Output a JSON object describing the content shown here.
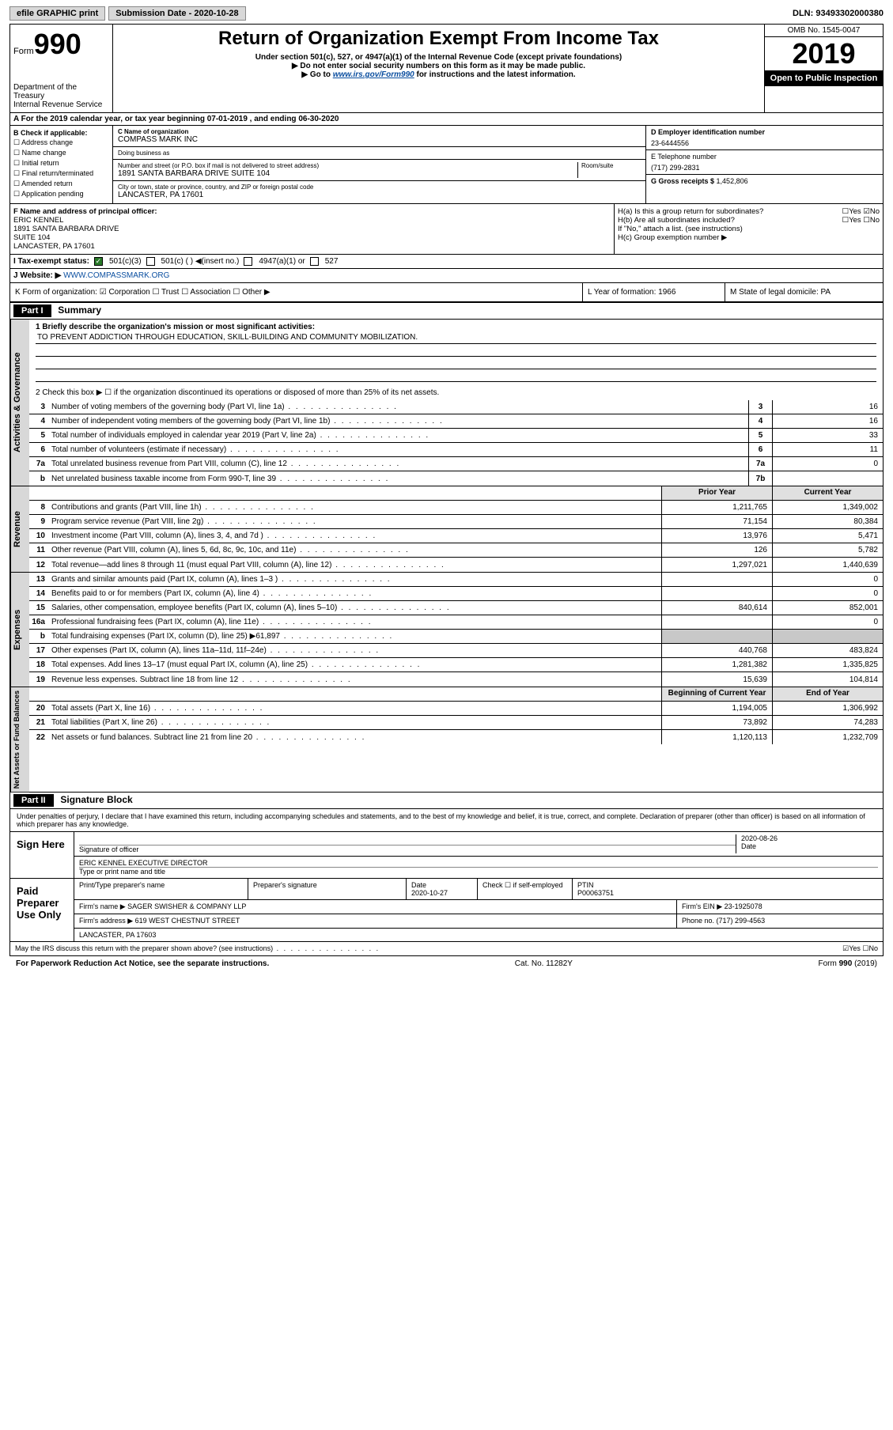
{
  "topbar": {
    "efile": "efile GRAPHIC print",
    "subdate_label": "Submission Date - ",
    "subdate": "2020-10-28",
    "dln_label": "DLN: ",
    "dln": "93493302000380"
  },
  "header": {
    "form_word": "Form",
    "form_num": "990",
    "dept": "Department of the Treasury\nInternal Revenue Service",
    "title": "Return of Organization Exempt From Income Tax",
    "sub1": "Under section 501(c), 527, or 4947(a)(1) of the Internal Revenue Code (except private foundations)",
    "sub2": "▶ Do not enter social security numbers on this form as it may be made public.",
    "sub3_pre": "▶ Go to ",
    "sub3_link": "www.irs.gov/Form990",
    "sub3_post": " for instructions and the latest information.",
    "omb": "OMB No. 1545-0047",
    "year": "2019",
    "inspect": "Open to Public Inspection"
  },
  "row_a": "A For the 2019 calendar year, or tax year beginning 07-01-2019    , and ending 06-30-2020",
  "section_b": {
    "heading": "B Check if applicable:",
    "items": [
      "☐ Address change",
      "☐ Name change",
      "☐ Initial return",
      "☐ Final return/terminated",
      "☐ Amended return",
      "☐ Application pending"
    ],
    "c_label": "C Name of organization",
    "c_name": "COMPASS MARK INC",
    "dba_label": "Doing business as",
    "dba": "",
    "addr_label": "Number and street (or P.O. box if mail is not delivered to street address)",
    "room_label": "Room/suite",
    "addr": "1891 SANTA BARBARA DRIVE SUITE 104",
    "city_label": "City or town, state or province, country, and ZIP or foreign postal code",
    "city": "LANCASTER, PA  17601",
    "d_label": "D Employer identification number",
    "d_ein": "23-6444556",
    "e_label": "E Telephone number",
    "e_phone": "(717) 299-2831",
    "g_label": "G Gross receipts $ ",
    "g_val": "1,452,806"
  },
  "section_fgh": {
    "f_label": "F  Name and address of principal officer:",
    "f_name": "ERIC KENNEL",
    "f_addr1": "1891 SANTA BARBARA DRIVE",
    "f_addr2": "SUITE 104",
    "f_city": "LANCASTER, PA  17601",
    "ha_label": "H(a)  Is this a group return for subordinates?",
    "ha_yes": "☐Yes",
    "ha_no": "☑No",
    "hb_label": "H(b)  Are all subordinates included?",
    "hb_yes": "☐Yes",
    "hb_no": "☐No",
    "hb_note": "If \"No,\" attach a list. (see instructions)",
    "hc_label": "H(c)  Group exemption number ▶"
  },
  "row_i": {
    "label": "I  Tax-exempt status:",
    "opt1": "501(c)(3)",
    "opt2": "501(c) (   ) ◀(insert no.)",
    "opt3": "4947(a)(1) or",
    "opt4": "527"
  },
  "row_j": {
    "label": "J  Website: ▶",
    "url": "WWW.COMPASSMARK.ORG"
  },
  "row_kl": {
    "k": "K Form of organization:  ☑ Corporation  ☐ Trust  ☐ Association  ☐ Other ▶",
    "l": "L Year of formation: 1966",
    "m": "M State of legal domicile: PA"
  },
  "part1": {
    "header": "Part I",
    "title": "Summary",
    "line1_label": "1  Briefly describe the organization's mission or most significant activities:",
    "line1_text": "TO PREVENT ADDICTION THROUGH EDUCATION, SKILL-BUILDING AND COMMUNITY MOBILIZATION.",
    "line2": "2  Check this box ▶ ☐  if the organization discontinued its operations or disposed of more than 25% of its net assets."
  },
  "side_labels": {
    "gov": "Activities & Governance",
    "rev": "Revenue",
    "exp": "Expenses",
    "net": "Net Assets or Fund Balances"
  },
  "gov_lines": [
    {
      "n": "3",
      "d": "Number of voting members of the governing body (Part VI, line 1a)",
      "b": "3",
      "v": "16"
    },
    {
      "n": "4",
      "d": "Number of independent voting members of the governing body (Part VI, line 1b)",
      "b": "4",
      "v": "16"
    },
    {
      "n": "5",
      "d": "Total number of individuals employed in calendar year 2019 (Part V, line 2a)",
      "b": "5",
      "v": "33"
    },
    {
      "n": "6",
      "d": "Total number of volunteers (estimate if necessary)",
      "b": "6",
      "v": "11"
    },
    {
      "n": "7a",
      "d": "Total unrelated business revenue from Part VIII, column (C), line 12",
      "b": "7a",
      "v": "0"
    },
    {
      "n": "b",
      "d": "Net unrelated business taxable income from Form 990-T, line 39",
      "b": "7b",
      "v": ""
    }
  ],
  "col_headers": {
    "prior": "Prior Year",
    "current": "Current Year"
  },
  "rev_lines": [
    {
      "n": "8",
      "d": "Contributions and grants (Part VIII, line 1h)",
      "p": "1,211,765",
      "c": "1,349,002"
    },
    {
      "n": "9",
      "d": "Program service revenue (Part VIII, line 2g)",
      "p": "71,154",
      "c": "80,384"
    },
    {
      "n": "10",
      "d": "Investment income (Part VIII, column (A), lines 3, 4, and 7d )",
      "p": "13,976",
      "c": "5,471"
    },
    {
      "n": "11",
      "d": "Other revenue (Part VIII, column (A), lines 5, 6d, 8c, 9c, 10c, and 11e)",
      "p": "126",
      "c": "5,782"
    },
    {
      "n": "12",
      "d": "Total revenue—add lines 8 through 11 (must equal Part VIII, column (A), line 12)",
      "p": "1,297,021",
      "c": "1,440,639"
    }
  ],
  "exp_lines": [
    {
      "n": "13",
      "d": "Grants and similar amounts paid (Part IX, column (A), lines 1–3 )",
      "p": "",
      "c": "0"
    },
    {
      "n": "14",
      "d": "Benefits paid to or for members (Part IX, column (A), line 4)",
      "p": "",
      "c": "0"
    },
    {
      "n": "15",
      "d": "Salaries, other compensation, employee benefits (Part IX, column (A), lines 5–10)",
      "p": "840,614",
      "c": "852,001"
    },
    {
      "n": "16a",
      "d": "Professional fundraising fees (Part IX, column (A), line 11e)",
      "p": "",
      "c": "0"
    },
    {
      "n": "b",
      "d": "Total fundraising expenses (Part IX, column (D), line 25) ▶61,897",
      "p": "GREY",
      "c": "GREY"
    },
    {
      "n": "17",
      "d": "Other expenses (Part IX, column (A), lines 11a–11d, 11f–24e)",
      "p": "440,768",
      "c": "483,824"
    },
    {
      "n": "18",
      "d": "Total expenses. Add lines 13–17 (must equal Part IX, column (A), line 25)",
      "p": "1,281,382",
      "c": "1,335,825"
    },
    {
      "n": "19",
      "d": "Revenue less expenses. Subtract line 18 from line 12",
      "p": "15,639",
      "c": "104,814"
    }
  ],
  "net_header": {
    "beg": "Beginning of Current Year",
    "end": "End of Year"
  },
  "net_lines": [
    {
      "n": "20",
      "d": "Total assets (Part X, line 16)",
      "p": "1,194,005",
      "c": "1,306,992"
    },
    {
      "n": "21",
      "d": "Total liabilities (Part X, line 26)",
      "p": "73,892",
      "c": "74,283"
    },
    {
      "n": "22",
      "d": "Net assets or fund balances. Subtract line 21 from line 20",
      "p": "1,120,113",
      "c": "1,232,709"
    }
  ],
  "part2": {
    "header": "Part II",
    "title": "Signature Block",
    "declare": "Under penalties of perjury, I declare that I have examined this return, including accompanying schedules and statements, and to the best of my knowledge and belief, it is true, correct, and complete. Declaration of preparer (other than officer) is based on all information of which preparer has any knowledge."
  },
  "sign": {
    "label": "Sign Here",
    "sig_label": "Signature of officer",
    "date_label": "Date",
    "date": "2020-08-26",
    "name": "ERIC KENNEL  EXECUTIVE DIRECTOR",
    "name_label": "Type or print name and title"
  },
  "prep": {
    "label": "Paid Preparer Use Only",
    "col1": "Print/Type preparer's name",
    "col2": "Preparer's signature",
    "col3_label": "Date",
    "col3": "2020-10-27",
    "col4": "Check ☐ if self-employed",
    "col5_label": "PTIN",
    "col5": "P00063751",
    "firm_label": "Firm's name    ▶ ",
    "firm": "SAGER SWISHER & COMPANY LLP",
    "ein_label": "Firm's EIN ▶ ",
    "ein": "23-1925078",
    "addr_label": "Firm's address ▶ ",
    "addr1": "619 WEST CHESTNUT STREET",
    "addr2": "LANCASTER, PA  17603",
    "phone_label": "Phone no. ",
    "phone": "(717) 299-4563",
    "discuss": "May the IRS discuss this return with the preparer shown above? (see instructions)",
    "discuss_yes": "☑Yes",
    "discuss_no": "☐No"
  },
  "footer": {
    "left": "For Paperwork Reduction Act Notice, see the separate instructions.",
    "mid": "Cat. No. 11282Y",
    "right": "Form 990 (2019)"
  }
}
